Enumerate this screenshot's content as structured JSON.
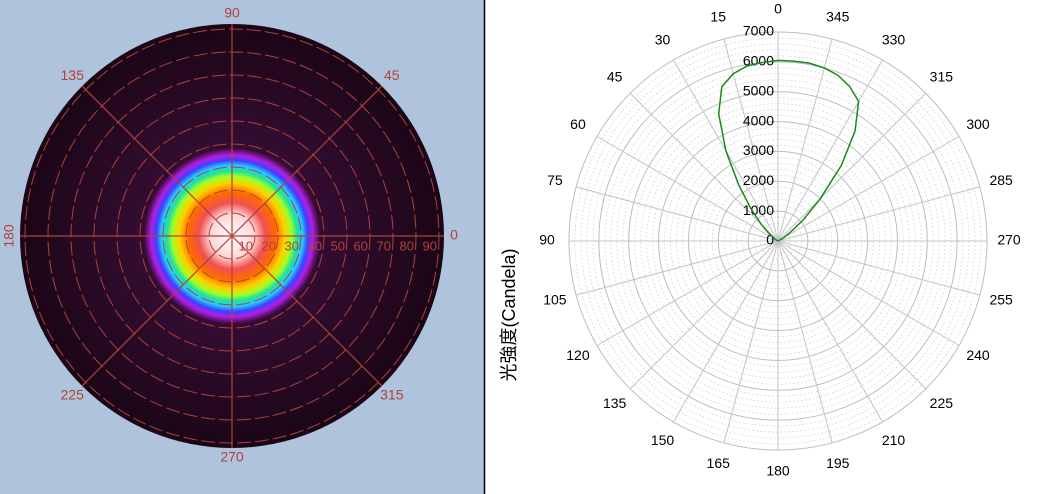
{
  "chart_data": [
    {
      "type": "polar_map",
      "angle_ticks": [
        0,
        45,
        90,
        135,
        180,
        225,
        270,
        315
      ],
      "radial_ticks": [
        10,
        20,
        30,
        40,
        50,
        60,
        70,
        80,
        90
      ],
      "rlim": [
        0,
        90
      ],
      "color": "#b0413a"
    },
    {
      "type": "polar",
      "ylabel": "光強度(Candela)",
      "x": [
        280,
        290,
        300,
        305,
        310,
        315,
        320,
        325,
        330,
        335,
        340,
        345,
        350,
        355,
        0,
        5,
        10,
        15,
        20,
        25,
        30,
        35,
        40,
        45,
        50,
        60,
        70,
        80
      ],
      "values": [
        0,
        0,
        200,
        500,
        1100,
        2000,
        3300,
        4500,
        5400,
        5700,
        5900,
        6000,
        6050,
        6050,
        6050,
        6000,
        5950,
        5800,
        5500,
        4700,
        3500,
        2300,
        1400,
        800,
        400,
        100,
        0,
        0
      ],
      "color": "#1a8a1a",
      "xticks": [
        0,
        15,
        30,
        45,
        60,
        75,
        90,
        105,
        120,
        135,
        150,
        165,
        180,
        195,
        210,
        225,
        240,
        255,
        270,
        285,
        300,
        315,
        330,
        345
      ],
      "ylim": [
        0,
        7000
      ],
      "yticks": [
        0,
        1000,
        2000,
        3000,
        4000,
        5000,
        6000,
        7000
      ],
      "minor_grid": 5,
      "grid": true
    }
  ]
}
